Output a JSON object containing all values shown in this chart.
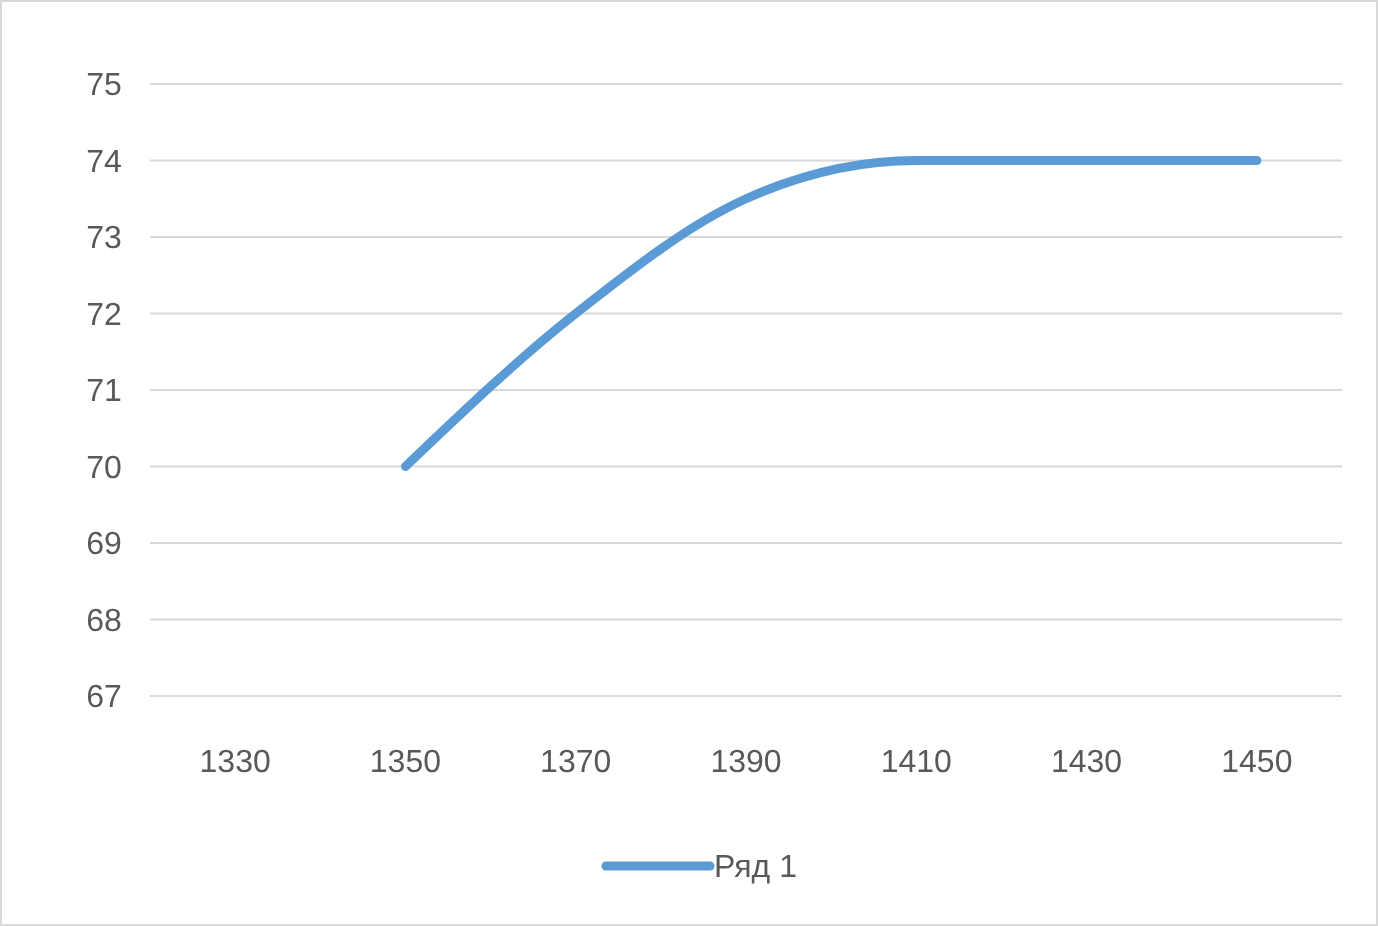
{
  "chart_data": {
    "type": "line",
    "categories": [
      "1330",
      "1350",
      "1370",
      "1390",
      "1410",
      "1430",
      "1450"
    ],
    "series": [
      {
        "name": "Ряд 1",
        "color": "#5b9bd5",
        "values": [
          null,
          70,
          72,
          73.5,
          74,
          74,
          74
        ]
      }
    ],
    "ylim": [
      67,
      75
    ],
    "yticks": [
      67,
      68,
      69,
      70,
      71,
      72,
      73,
      74,
      75
    ],
    "grid": "y",
    "legend": "bottom",
    "marker": "none",
    "line_style": "solid"
  }
}
